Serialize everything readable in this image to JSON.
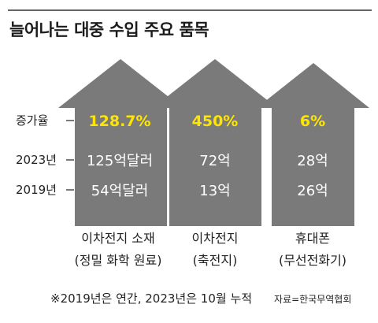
{
  "title": "늘어나는 대중 수입 주요 품목",
  "footnote": "※2019년은 연간, 2023년은 10월 누적",
  "source": "자료=한국무역협회",
  "colors": {
    "arrow": "#7a7a7a",
    "highlight": "#ffe600",
    "text_on_arrow": "#ffffff"
  },
  "chart_data": {
    "type": "table",
    "row_labels": {
      "growth": "증가율",
      "y2023": "2023년",
      "y2019": "2019년"
    },
    "categories": [
      {
        "name_line1": "이차전지 소재",
        "name_line2": "(정밀 화학 원료)",
        "growth": "128.7%",
        "y2023": "125억달러",
        "y2019": "54억달러"
      },
      {
        "name_line1": "이차전지",
        "name_line2": "(축전지)",
        "growth": "450%",
        "y2023": "72억",
        "y2019": "13억"
      },
      {
        "name_line1": "휴대폰",
        "name_line2": "(무선전화기)",
        "growth": "6%",
        "y2023": "28억",
        "y2019": "26억"
      }
    ]
  }
}
